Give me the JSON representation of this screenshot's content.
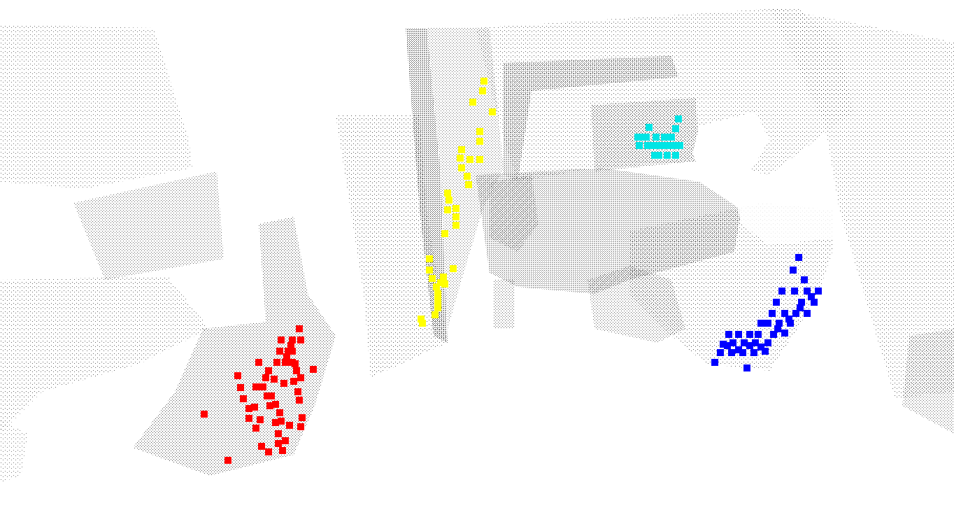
{
  "scene": {
    "background": "#ffffff",
    "point_cloud_color": "#000000",
    "marker_groups": [
      {
        "name": "marker-group-red",
        "color": "#ff0000",
        "count": 52
      },
      {
        "name": "marker-group-yellow",
        "color": "#ffff00",
        "count": 34
      },
      {
        "name": "marker-group-cyan",
        "color": "#00e5e5",
        "count": 22
      },
      {
        "name": "marker-group-blue",
        "color": "#0000ff",
        "count": 44
      }
    ]
  }
}
